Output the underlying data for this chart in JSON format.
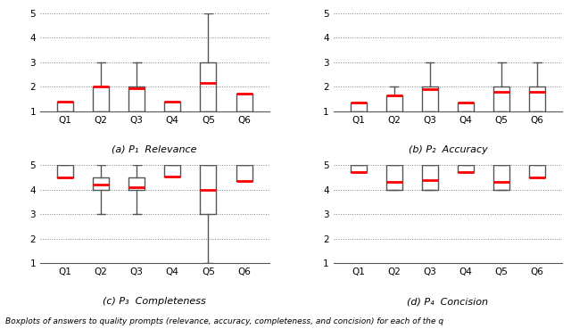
{
  "subplot_titles": [
    "(a) P₁  Relevance",
    "(b) P₂  Accuracy",
    "(c) P₃  Completeness",
    "(d) P₄  Concision"
  ],
  "categories": [
    "Q1",
    "Q2",
    "Q3",
    "Q4",
    "Q5",
    "Q6"
  ],
  "ylim": [
    1,
    5
  ],
  "yticks": [
    1,
    2,
    3,
    4,
    5
  ],
  "box_color": "#555555",
  "median_color": "#ff0000",
  "whisker_color": "#555555",
  "caption": "Boxplots of answers to quality prompts (relevance, accuracy, completeness, and concision) for each of the q",
  "boxplots": {
    "relevance": [
      {
        "whislo": 1.0,
        "q1": 1.0,
        "med": 1.4,
        "q3": 1.0,
        "whishi": 1.0
      },
      {
        "whislo": 1.0,
        "q1": 1.0,
        "med": 2.0,
        "q3": 2.0,
        "whishi": 3.0
      },
      {
        "whislo": 1.0,
        "q1": 1.0,
        "med": 1.95,
        "q3": 2.0,
        "whishi": 3.0
      },
      {
        "whislo": 1.0,
        "q1": 1.0,
        "med": 1.4,
        "q3": 1.0,
        "whishi": 1.0
      },
      {
        "whislo": 1.0,
        "q1": 1.0,
        "med": 2.15,
        "q3": 3.0,
        "whishi": 5.0
      },
      {
        "whislo": 1.0,
        "q1": 1.0,
        "med": 1.7,
        "q3": 1.0,
        "whishi": 1.0
      }
    ],
    "accuracy": [
      {
        "whislo": 1.0,
        "q1": 1.0,
        "med": 1.35,
        "q3": 1.0,
        "whishi": 1.0
      },
      {
        "whislo": 1.0,
        "q1": 1.0,
        "med": 1.65,
        "q3": 1.5,
        "whishi": 2.0
      },
      {
        "whislo": 1.0,
        "q1": 1.0,
        "med": 1.9,
        "q3": 2.0,
        "whishi": 3.0
      },
      {
        "whislo": 1.0,
        "q1": 1.0,
        "med": 1.35,
        "q3": 1.0,
        "whishi": 1.0
      },
      {
        "whislo": 1.0,
        "q1": 1.0,
        "med": 1.8,
        "q3": 2.0,
        "whishi": 3.0
      },
      {
        "whislo": 1.0,
        "q1": 1.0,
        "med": 1.8,
        "q3": 2.0,
        "whishi": 3.0
      }
    ],
    "completeness": [
      {
        "whislo": 5.0,
        "q1": 5.0,
        "med": 4.5,
        "q3": 5.0,
        "whishi": 5.0
      },
      {
        "whislo": 3.0,
        "q1": 4.0,
        "med": 4.2,
        "q3": 4.5,
        "whishi": 5.0
      },
      {
        "whislo": 3.0,
        "q1": 4.0,
        "med": 4.1,
        "q3": 4.5,
        "whishi": 5.0
      },
      {
        "whislo": 5.0,
        "q1": 5.0,
        "med": 4.55,
        "q3": 5.0,
        "whishi": 5.0
      },
      {
        "whislo": 1.0,
        "q1": 3.0,
        "med": 4.0,
        "q3": 5.0,
        "whishi": 5.0
      },
      {
        "whislo": 5.0,
        "q1": 5.0,
        "med": 4.35,
        "q3": 5.0,
        "whishi": 5.0
      }
    ],
    "concision": [
      {
        "whislo": 5.0,
        "q1": 5.0,
        "med": 4.7,
        "q3": 5.0,
        "whishi": 5.0
      },
      {
        "whislo": 4.0,
        "q1": 4.0,
        "med": 4.3,
        "q3": 5.0,
        "whishi": 5.0
      },
      {
        "whislo": 4.0,
        "q1": 4.0,
        "med": 4.4,
        "q3": 5.0,
        "whishi": 5.0
      },
      {
        "whislo": 5.0,
        "q1": 5.0,
        "med": 4.7,
        "q3": 5.0,
        "whishi": 5.0
      },
      {
        "whislo": 4.0,
        "q1": 4.0,
        "med": 4.3,
        "q3": 5.0,
        "whishi": 5.0
      },
      {
        "whislo": 5.0,
        "q1": 5.0,
        "med": 4.5,
        "q3": 5.0,
        "whishi": 5.0
      }
    ]
  }
}
